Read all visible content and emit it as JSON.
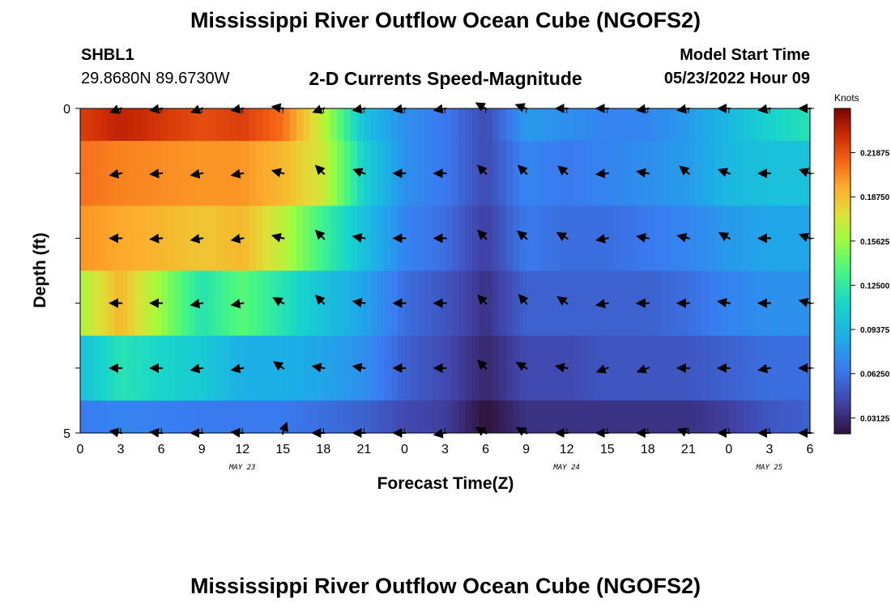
{
  "header": {
    "title": "Mississippi River Outflow Ocean Cube (NGOFS2)",
    "station_id": "SHBL1",
    "station_coords": "29.8680N  89.6730W",
    "subtitle": "2-D Currents Speed-Magnitude",
    "start_label": "Model Start Time",
    "start_value": "05/23/2022 Hour 09"
  },
  "footer": {
    "title": "Mississippi River Outflow Ocean Cube (NGOFS2)"
  },
  "chart_data": {
    "type": "heatmap",
    "title": "2-D Currents Speed-Magnitude",
    "xlabel": "Forecast Time(Z)",
    "ylabel": "Depth (ft)",
    "x_tick_labels": [
      "0",
      "3",
      "6",
      "9",
      "12",
      "15",
      "18",
      "21",
      "0",
      "3",
      "6",
      "9",
      "12",
      "15",
      "18",
      "21",
      "0",
      "3",
      "6"
    ],
    "date_labels": [
      {
        "label": "MAY 23",
        "x_index": 4
      },
      {
        "label": "MAY 24",
        "x_index": 12
      },
      {
        "label": "MAY 25",
        "x_index": 17
      }
    ],
    "y_tick_labels": [
      "0",
      "5"
    ],
    "ylim": [
      0,
      5
    ],
    "colorbar": {
      "label": "Knots",
      "ticks": [
        "0.21875",
        "0.18750",
        "0.15625",
        "0.12500",
        "0.09375",
        "0.06250",
        "0.03125"
      ],
      "range": [
        0.02,
        0.25
      ]
    },
    "depth_layers": [
      0,
      1,
      2,
      3,
      4,
      5
    ],
    "speed_profiles": [
      {
        "hours": [
          0,
          3,
          9,
          12,
          15,
          18,
          21,
          24,
          27,
          30,
          33,
          36,
          39,
          42,
          45,
          48,
          51,
          54
        ],
        "values": [
          0.225,
          0.235,
          0.22,
          0.225,
          0.21,
          0.165,
          0.1,
          0.075,
          0.065,
          0.045,
          0.08,
          0.075,
          0.07,
          0.07,
          0.08,
          0.095,
          0.11,
          0.12
        ]
      },
      {
        "hours": [
          0,
          3,
          9,
          12,
          15,
          18,
          21,
          24,
          27,
          30,
          33,
          36,
          39,
          42,
          45,
          48,
          51,
          54
        ],
        "values": [
          0.21,
          0.205,
          0.2,
          0.2,
          0.19,
          0.17,
          0.11,
          0.075,
          0.065,
          0.045,
          0.07,
          0.065,
          0.07,
          0.075,
          0.08,
          0.095,
          0.1,
          0.1
        ]
      },
      {
        "hours": [
          0,
          3,
          9,
          12,
          15,
          18,
          21,
          24,
          27,
          30,
          33,
          36,
          39,
          42,
          45,
          48,
          51,
          54
        ],
        "values": [
          0.2,
          0.195,
          0.185,
          0.19,
          0.165,
          0.13,
          0.1,
          0.07,
          0.06,
          0.04,
          0.065,
          0.06,
          0.06,
          0.065,
          0.07,
          0.08,
          0.085,
          0.085
        ]
      },
      {
        "hours": [
          0,
          3,
          9,
          12,
          15,
          18,
          21,
          24,
          27,
          30,
          33,
          36,
          39,
          42,
          45,
          48,
          51,
          54
        ],
        "values": [
          0.16,
          0.19,
          0.12,
          0.14,
          0.12,
          0.1,
          0.085,
          0.06,
          0.05,
          0.035,
          0.055,
          0.055,
          0.055,
          0.055,
          0.06,
          0.07,
          0.075,
          0.075
        ]
      },
      {
        "hours": [
          0,
          3,
          9,
          12,
          15,
          18,
          21,
          24,
          27,
          30,
          33,
          36,
          39,
          42,
          45,
          48,
          51,
          54
        ],
        "values": [
          0.1,
          0.12,
          0.105,
          0.09,
          0.09,
          0.085,
          0.075,
          0.055,
          0.045,
          0.03,
          0.045,
          0.045,
          0.05,
          0.05,
          0.05,
          0.055,
          0.06,
          0.06
        ]
      },
      {
        "hours": [
          0,
          3,
          9,
          12,
          15,
          18,
          21,
          24,
          27,
          30,
          33,
          36,
          39,
          42,
          45,
          48,
          51,
          54
        ],
        "values": [
          0.065,
          0.07,
          0.065,
          0.065,
          0.065,
          0.06,
          0.055,
          0.045,
          0.04,
          0.02,
          0.035,
          0.035,
          0.035,
          0.035,
          0.035,
          0.04,
          0.05,
          0.055
        ]
      }
    ],
    "vectors": {
      "hours": [
        3,
        6,
        9,
        12,
        15,
        18,
        21,
        24,
        27,
        30,
        33,
        36,
        39,
        42,
        45,
        48,
        51,
        54
      ],
      "layers": [
        {
          "depth": 0,
          "dir_deg": [
            200,
            190,
            200,
            190,
            170,
            200,
            190,
            190,
            190,
            150,
            160,
            180,
            180,
            190,
            190,
            180,
            190,
            180
          ]
        },
        {
          "depth": 1,
          "dir_deg": [
            190,
            185,
            190,
            190,
            165,
            135,
            160,
            180,
            180,
            135,
            135,
            140,
            185,
            170,
            140,
            160,
            180,
            160
          ]
        },
        {
          "depth": 2,
          "dir_deg": [
            180,
            185,
            190,
            190,
            165,
            135,
            170,
            180,
            180,
            135,
            140,
            150,
            190,
            170,
            165,
            150,
            180,
            160
          ]
        },
        {
          "depth": 3,
          "dir_deg": [
            180,
            180,
            190,
            190,
            150,
            135,
            170,
            180,
            180,
            135,
            130,
            145,
            190,
            180,
            180,
            170,
            180,
            165
          ]
        },
        {
          "depth": 4,
          "dir_deg": [
            180,
            180,
            190,
            190,
            145,
            170,
            170,
            180,
            180,
            135,
            150,
            170,
            200,
            200,
            180,
            180,
            190,
            180
          ]
        },
        {
          "depth": 5,
          "dir_deg": [
            170,
            175,
            180,
            175,
            70,
            180,
            180,
            180,
            190,
            150,
            150,
            180,
            180,
            180,
            160,
            180,
            180,
            180
          ]
        }
      ]
    }
  }
}
